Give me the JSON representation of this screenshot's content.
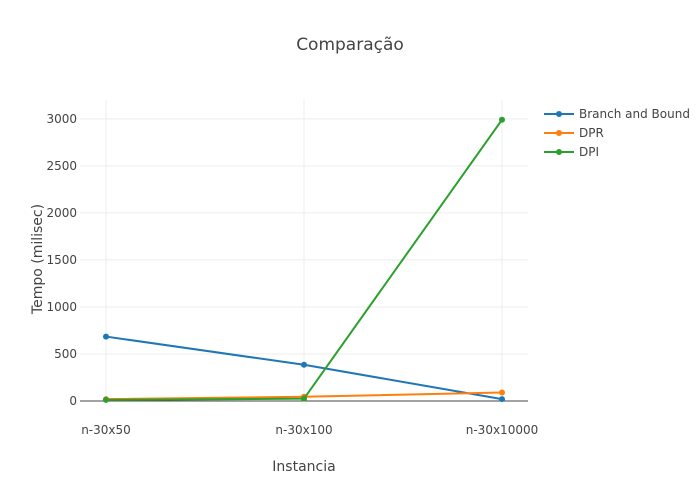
{
  "chart_data": {
    "type": "line",
    "title": "Comparação",
    "xlabel": "Instancia",
    "ylabel": "Tempo (milisec)",
    "categories": [
      "n-30x50",
      "n-30x100",
      "n-30x10000"
    ],
    "ylim": [
      0,
      3200
    ],
    "yticks": [
      0,
      500,
      1000,
      1500,
      2000,
      2500,
      3000
    ],
    "grid": true,
    "legend_position": "top-right",
    "series": [
      {
        "name": "Branch and Bound",
        "color": "#1f77b4",
        "values": [
          685,
          385,
          20
        ]
      },
      {
        "name": "DPR",
        "color": "#ff7f0e",
        "values": [
          20,
          45,
          90
        ]
      },
      {
        "name": "DPI",
        "color": "#2ca02c",
        "values": [
          12,
          25,
          2990
        ]
      }
    ]
  }
}
